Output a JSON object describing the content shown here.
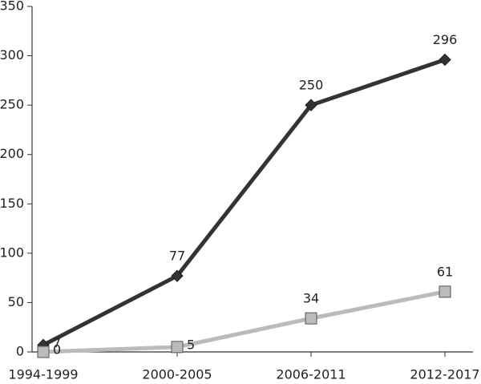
{
  "chart_data": {
    "type": "line",
    "categories": [
      "1994-1999",
      "2000-2005",
      "2006-2011",
      "2012-2017"
    ],
    "series": [
      {
        "color": "#333333",
        "marker": "diamond",
        "values": [
          7,
          77,
          250,
          296
        ]
      },
      {
        "color": "#bbbbbb",
        "marker": "square",
        "values": [
          0,
          5,
          34,
          61
        ]
      }
    ],
    "ylim": [
      0,
      350
    ],
    "yticks": [
      0,
      50,
      100,
      150,
      200,
      250,
      300,
      350
    ],
    "grid": false
  }
}
